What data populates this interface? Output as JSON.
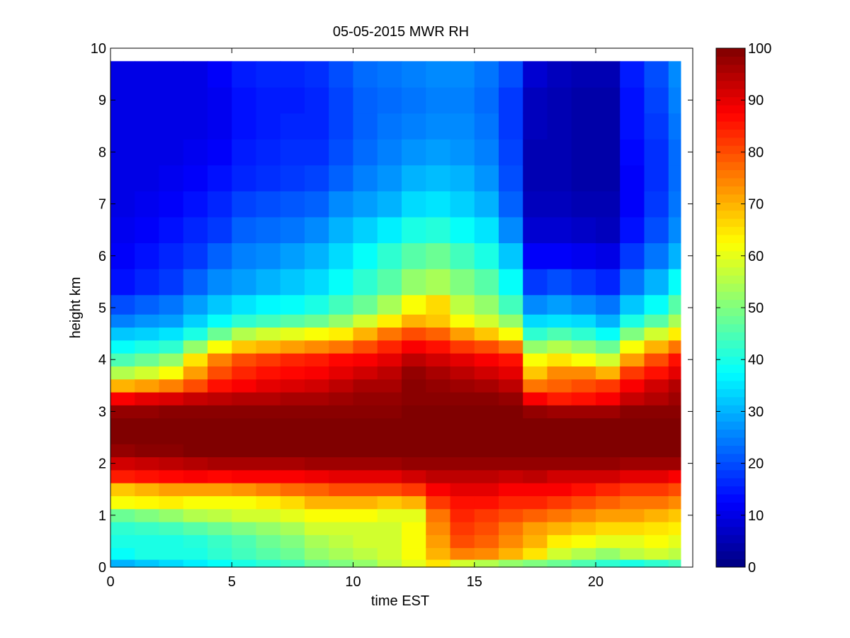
{
  "chart_data": {
    "type": "heatmap",
    "title": "05-05-2015 MWR RH",
    "xlabel": "time EST",
    "ylabel": "height km",
    "xlim": [
      0,
      24
    ],
    "ylim": [
      0,
      10
    ],
    "x_ticks": [
      0,
      5,
      10,
      15,
      20
    ],
    "y_ticks": [
      0,
      1,
      2,
      3,
      4,
      5,
      6,
      7,
      8,
      9,
      10
    ],
    "colormap": "jet",
    "clim": [
      0,
      100
    ],
    "colorbar_ticks": [
      0,
      10,
      20,
      30,
      40,
      50,
      60,
      70,
      80,
      90,
      100
    ],
    "colorbar_position": "right",
    "grid": false,
    "time_hours": [
      0.5,
      1.5,
      2.5,
      3.5,
      4.5,
      5.5,
      6.5,
      7.5,
      8.5,
      9.5,
      10.5,
      11.5,
      12.5,
      13.5,
      14.5,
      15.5,
      16.5,
      17.5,
      18.5,
      19.5,
      20.5,
      21.5,
      22.5,
      23.5
    ],
    "height_km": [
      0.05,
      0.25,
      0.5,
      0.75,
      1.0,
      1.25,
      1.5,
      1.75,
      2.0,
      2.25,
      2.5,
      2.75,
      3.0,
      3.25,
      3.5,
      3.75,
      4.0,
      4.25,
      4.5,
      4.75,
      5.0,
      5.5,
      6.0,
      6.5,
      7.0,
      7.5,
      8.0,
      8.5,
      9.0,
      9.5
    ],
    "rh_percent": [
      [
        30,
        38,
        40,
        42,
        48,
        62,
        68,
        85,
        92,
        98,
        100,
        100,
        98,
        88,
        70,
        55,
        45,
        38,
        32,
        25,
        20,
        14,
        12,
        11,
        10,
        10,
        10,
        10,
        10,
        10
      ],
      [
        32,
        40,
        40,
        43,
        50,
        63,
        70,
        86,
        93,
        99,
        100,
        100,
        98,
        90,
        72,
        58,
        48,
        40,
        33,
        27,
        22,
        16,
        14,
        12,
        11,
        10,
        10,
        10,
        10,
        10
      ],
      [
        34,
        40,
        40,
        44,
        52,
        64,
        72,
        87,
        94,
        99,
        100,
        100,
        99,
        91,
        75,
        62,
        52,
        42,
        35,
        28,
        24,
        18,
        16,
        14,
        12,
        11,
        10,
        10,
        10,
        10
      ],
      [
        36,
        40,
        41,
        46,
        55,
        62,
        72,
        88,
        95,
        100,
        100,
        100,
        99,
        93,
        80,
        72,
        65,
        52,
        40,
        33,
        28,
        22,
        18,
        16,
        14,
        12,
        11,
        10,
        10,
        10
      ],
      [
        38,
        42,
        43,
        48,
        56,
        62,
        72,
        87,
        96,
        100,
        100,
        100,
        99,
        94,
        86,
        80,
        75,
        62,
        48,
        38,
        32,
        26,
        22,
        18,
        16,
        14,
        12,
        11,
        11,
        12
      ],
      [
        40,
        44,
        45,
        50,
        58,
        62,
        73,
        88,
        96,
        100,
        100,
        100,
        99,
        95,
        88,
        84,
        80,
        68,
        55,
        42,
        35,
        28,
        25,
        22,
        19,
        16,
        15,
        14,
        14,
        15
      ],
      [
        42,
        46,
        48,
        52,
        58,
        64,
        75,
        88,
        96,
        100,
        100,
        100,
        99,
        95,
        90,
        86,
        82,
        70,
        58,
        44,
        37,
        30,
        26,
        23,
        20,
        17,
        16,
        15,
        15,
        16
      ],
      [
        44,
        48,
        50,
        54,
        60,
        66,
        77,
        88,
        96,
        100,
        100,
        100,
        99,
        96,
        91,
        87,
        84,
        72,
        60,
        46,
        38,
        32,
        28,
        24,
        21,
        18,
        17,
        16,
        15,
        16
      ],
      [
        48,
        52,
        54,
        58,
        62,
        70,
        78,
        89,
        97,
        100,
        100,
        100,
        99,
        96,
        92,
        88,
        85,
        74,
        62,
        48,
        40,
        34,
        30,
        26,
        22,
        19,
        17,
        16,
        16,
        17
      ],
      [
        50,
        54,
        56,
        58,
        62,
        70,
        80,
        90,
        97,
        100,
        100,
        100,
        99,
        97,
        94,
        90,
        87,
        76,
        64,
        52,
        44,
        38,
        34,
        30,
        26,
        22,
        20,
        19,
        19,
        20
      ],
      [
        52,
        56,
        58,
        58,
        62,
        70,
        80,
        90,
        97,
        100,
        100,
        100,
        99,
        98,
        96,
        92,
        88,
        80,
        70,
        58,
        48,
        42,
        38,
        33,
        28,
        25,
        23,
        22,
        22,
        23
      ],
      [
        56,
        58,
        58,
        58,
        60,
        68,
        80,
        90,
        97,
        100,
        100,
        100,
        99,
        98,
        96,
        94,
        90,
        84,
        76,
        64,
        54,
        46,
        42,
        36,
        30,
        27,
        25,
        24,
        23,
        24
      ],
      [
        60,
        62,
        62,
        62,
        60,
        70,
        82,
        92,
        98,
        100,
        100,
        100,
        100,
        99,
        99,
        98,
        94,
        88,
        80,
        70,
        62,
        52,
        46,
        40,
        34,
        30,
        27,
        25,
        24,
        25
      ],
      [
        65,
        70,
        72,
        74,
        76,
        82,
        88,
        94,
        98,
        100,
        100,
        100,
        100,
        99,
        98,
        96,
        92,
        86,
        78,
        68,
        66,
        54,
        48,
        41,
        35,
        31,
        28,
        26,
        25,
        26
      ],
      [
        58,
        75,
        80,
        82,
        84,
        86,
        90,
        94,
        98,
        100,
        100,
        100,
        100,
        99,
        97,
        94,
        90,
        82,
        72,
        62,
        56,
        50,
        44,
        38,
        33,
        30,
        27,
        26,
        25,
        26
      ],
      [
        55,
        74,
        78,
        80,
        82,
        86,
        90,
        94,
        98,
        100,
        100,
        100,
        100,
        99,
        96,
        92,
        88,
        80,
        68,
        58,
        52,
        46,
        40,
        35,
        30,
        27,
        25,
        24,
        23,
        24
      ],
      [
        52,
        70,
        74,
        76,
        80,
        84,
        88,
        93,
        98,
        100,
        100,
        100,
        100,
        98,
        94,
        90,
        86,
        76,
        62,
        52,
        44,
        38,
        32,
        26,
        22,
        20,
        19,
        18,
        18,
        20
      ],
      [
        50,
        65,
        70,
        72,
        78,
        84,
        88,
        94,
        98,
        100,
        100,
        100,
        98,
        88,
        76,
        68,
        62,
        52,
        42,
        34,
        26,
        18,
        12,
        8,
        6,
        5,
        5,
        6,
        6,
        8
      ],
      [
        48,
        58,
        64,
        70,
        76,
        82,
        88,
        92,
        98,
        100,
        100,
        100,
        97,
        85,
        78,
        74,
        65,
        55,
        45,
        35,
        28,
        20,
        12,
        8,
        6,
        5,
        5,
        5,
        5,
        6
      ],
      [
        45,
        55,
        62,
        68,
        74,
        80,
        86,
        92,
        98,
        100,
        100,
        100,
        97,
        86,
        80,
        74,
        62,
        52,
        42,
        34,
        26,
        18,
        11,
        7,
        5,
        4,
        4,
        4,
        4,
        5
      ],
      [
        42,
        52,
        60,
        66,
        72,
        78,
        84,
        92,
        98,
        100,
        100,
        100,
        97,
        88,
        82,
        70,
        58,
        48,
        38,
        30,
        24,
        16,
        10,
        6,
        5,
        4,
        4,
        4,
        4,
        5
      ],
      [
        40,
        56,
        60,
        66,
        72,
        76,
        82,
        90,
        97,
        100,
        100,
        100,
        99,
        93,
        88,
        82,
        72,
        62,
        50,
        40,
        32,
        24,
        18,
        14,
        12,
        12,
        13,
        14,
        14,
        15
      ],
      [
        42,
        58,
        62,
        65,
        70,
        76,
        82,
        90,
        97,
        100,
        100,
        100,
        99,
        95,
        92,
        86,
        80,
        70,
        58,
        46,
        38,
        30,
        24,
        20,
        18,
        17,
        17,
        18,
        19,
        20
      ],
      [
        44,
        56,
        60,
        64,
        68,
        74,
        80,
        88,
        97,
        100,
        100,
        100,
        99,
        97,
        95,
        90,
        86,
        76,
        64,
        54,
        46,
        38,
        30,
        26,
        24,
        23,
        23,
        24,
        25,
        26
      ]
    ]
  }
}
